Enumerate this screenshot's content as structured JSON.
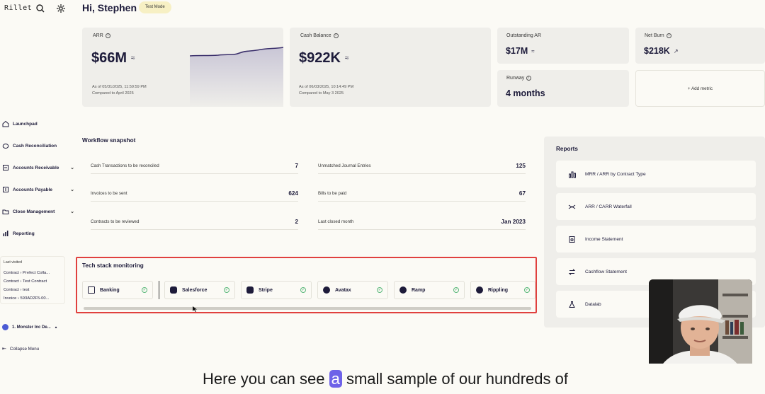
{
  "app": {
    "logo": "Rillet",
    "greeting": "Hi, Stephen",
    "mode_badge": "Test Mode"
  },
  "sidebar": {
    "items": [
      {
        "label": "Launchpad",
        "icon": "home-icon",
        "chevron": false
      },
      {
        "label": "Cash Reconciliation",
        "icon": "piggy-bank-icon",
        "chevron": false
      },
      {
        "label": "Accounts Receivable",
        "icon": "receivable-icon",
        "chevron": true
      },
      {
        "label": "Accounts Payable",
        "icon": "payable-icon",
        "chevron": true
      },
      {
        "label": "Close Management",
        "icon": "folder-icon",
        "chevron": true
      },
      {
        "label": "Reporting",
        "icon": "bar-chart-icon",
        "chevron": false
      }
    ],
    "recent": {
      "title": "Last visited",
      "items": [
        "Contract › Prefect Colla...",
        "Contract › Test Contract",
        "Contract › test",
        "Invoice › 593AD2F5-00..."
      ]
    },
    "org": "1. Monster Inc De...",
    "collapse": "Collapse Menu"
  },
  "metrics": {
    "arr": {
      "label": "ARR",
      "value": "$66M",
      "trend": "≈",
      "as_of": "As of 05/31/2025, 11:59:59 PM",
      "compared": "Compared to April 2025"
    },
    "cash": {
      "label": "Cash Balance",
      "value": "$922K",
      "trend": "≈",
      "as_of": "As of 06/03/2025, 10:14:49 PM",
      "compared": "Compared to May 3 2025"
    },
    "ar": {
      "label": "Outstanding AR",
      "value": "$17M",
      "trend": "≈"
    },
    "burn": {
      "label": "Net Burn",
      "value": "$218K",
      "trend": "↗"
    },
    "runway": {
      "label": "Runway",
      "value": "4 months"
    },
    "add": "+ Add metric"
  },
  "workflow": {
    "title": "Workflow snapshot",
    "rows": [
      {
        "left_label": "Cash Transactions to be reconciled",
        "left_value": "7",
        "right_label": "Unmatched Journal Entries",
        "right_value": "125"
      },
      {
        "left_label": "Invoices to be sent",
        "left_value": "624",
        "right_label": "Bills to be paid",
        "right_value": "67"
      },
      {
        "left_label": "Contracts to be reviewed",
        "left_value": "2",
        "right_label": "Last closed month",
        "right_value": "Jan 2023"
      }
    ]
  },
  "techstack": {
    "title": "Tech stack monitoring",
    "items": [
      {
        "name": "Banking",
        "icon": "bank-icon"
      },
      {
        "name": "Salesforce",
        "icon": "salesforce-icon"
      },
      {
        "name": "Stripe",
        "icon": "stripe-icon"
      },
      {
        "name": "Avatax",
        "icon": "avatax-icon"
      },
      {
        "name": "Ramp",
        "icon": "ramp-icon"
      },
      {
        "name": "Rippling",
        "icon": "rippling-icon"
      }
    ],
    "highlight_color": "#e0403e"
  },
  "reports": {
    "title": "Reports",
    "items": [
      {
        "label": "MRR / ARR by Contract Type",
        "icon": "chart-icon"
      },
      {
        "label": "ARR / CARR Waterfall",
        "icon": "waterfall-icon"
      },
      {
        "label": "Income Statement",
        "icon": "income-icon"
      },
      {
        "label": "Cashflow Statement",
        "icon": "cashflow-icon"
      },
      {
        "label": "Datalab",
        "icon": "flask-icon"
      }
    ]
  },
  "caption": {
    "before": "Here you can see",
    "highlight": "a",
    "after": "small sample of our hundreds of"
  },
  "colors": {
    "accent": "#6e62e8",
    "card": "#efeeea",
    "background": "#fbfaf5"
  }
}
